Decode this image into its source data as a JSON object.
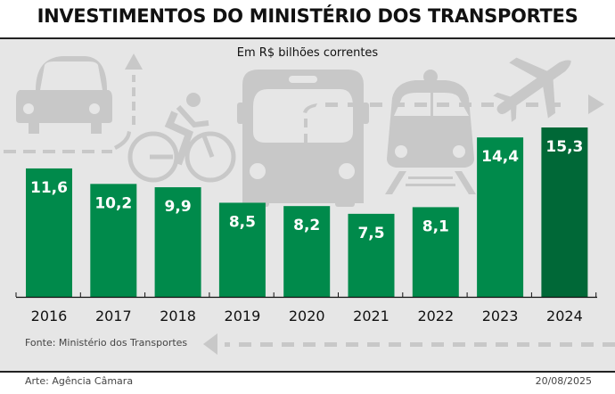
{
  "header": {
    "title": "INVESTIMENTOS DO MINISTÉRIO DOS TRANSPORTES",
    "subtitle": "Em R$ bilhões correntes"
  },
  "footer": {
    "source": "Fonte: Ministério dos Transportes",
    "credit": "Arte: Agência Câmara",
    "date": "20/08/2025"
  },
  "colors": {
    "bar": "#008a4b",
    "bar_highlight": "#006837",
    "background_panel": "#e6e6e6",
    "icon_gray": "#c8c8c8"
  },
  "decorations": [
    "car-icon",
    "bicycle-icon",
    "bus-icon",
    "train-icon",
    "airplane-icon",
    "dashed-arrow-up",
    "dashed-arrow-right",
    "dashed-arrow-left"
  ],
  "chart_data": {
    "type": "bar",
    "title": "INVESTIMENTOS DO MINISTÉRIO DOS TRANSPORTES",
    "subtitle": "Em R$ bilhões correntes",
    "xlabel": "",
    "ylabel": "",
    "categories": [
      "2016",
      "2017",
      "2018",
      "2019",
      "2020",
      "2021",
      "2022",
      "2023",
      "2024"
    ],
    "values": [
      11.6,
      10.2,
      9.9,
      8.5,
      8.2,
      7.5,
      8.1,
      14.4,
      15.3
    ],
    "value_labels": [
      "11,6",
      "10,2",
      "9,9",
      "8,5",
      "8,2",
      "7,5",
      "8,1",
      "14,4",
      "15,3"
    ],
    "highlight_index": 8,
    "ylim": [
      0,
      15.3
    ],
    "grid": false,
    "legend": "none"
  }
}
